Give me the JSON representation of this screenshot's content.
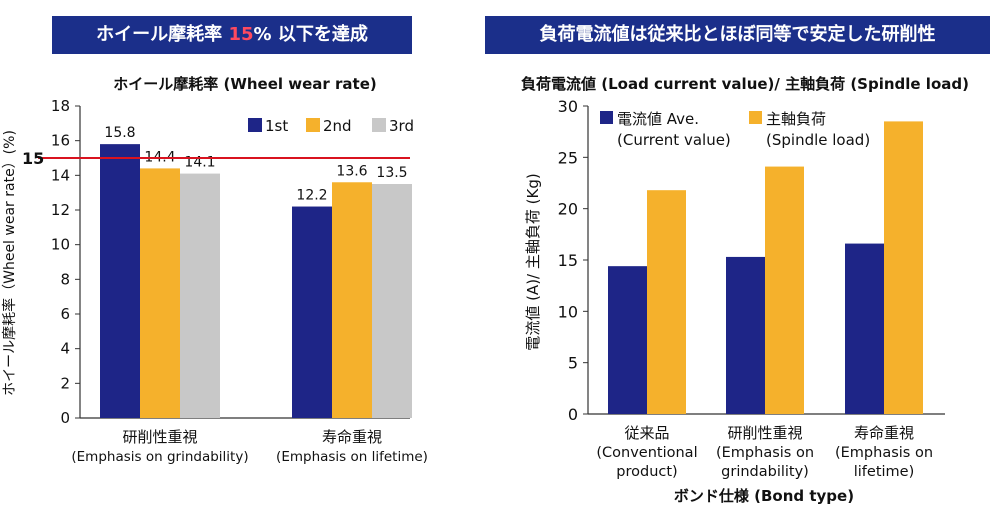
{
  "colors": {
    "banner": "#1b2f8a",
    "series1": "#1e2587",
    "series2": "#f5b12c",
    "series3": "#c8c8c8",
    "threshold": "#d9131f"
  },
  "banners": {
    "left": {
      "prefix": "ホイール摩耗率 ",
      "highlight": "15",
      "suffix": "% 以下を達成"
    },
    "right": {
      "text": "負荷電流値は従来比とほぼ同等で安定した研削性"
    }
  },
  "chart_data": [
    {
      "type": "bar",
      "title": "ホイール摩耗率 (Wheel wear rate)",
      "ylabel": "ホイール摩耗率（Wheel wear rate）(%)",
      "ylim": [
        0,
        18
      ],
      "yticks": [
        "0",
        "2",
        "4",
        "6",
        "8",
        "10",
        "12",
        "14",
        "16",
        "18"
      ],
      "categories": [
        [
          "研削性重視",
          "(Emphasis on grindability)"
        ],
        [
          "寿命重視",
          "(Emphasis on lifetime)"
        ]
      ],
      "series": [
        {
          "name": "1st",
          "values": [
            15.8,
            12.2
          ]
        },
        {
          "name": "2nd",
          "values": [
            14.4,
            13.6
          ]
        },
        {
          "name": "3rd",
          "values": [
            14.1,
            13.5
          ]
        }
      ],
      "data_labels": [
        [
          "15.8",
          "12.2"
        ],
        [
          "14.4",
          "13.6"
        ],
        [
          "14.1",
          "13.5"
        ]
      ],
      "threshold": {
        "value": 15,
        "label": "15"
      },
      "legend": "top-right",
      "grid": false
    },
    {
      "type": "bar",
      "title": "負荷電流値 (Load current value)/ 主軸負荷 (Spindle load)",
      "ylabel": "電流値 (A)/ 主軸負荷 (Kg)",
      "xlabel": "ボンド仕様 (Bond type)",
      "ylim": [
        0,
        30
      ],
      "yticks": [
        "0",
        "5",
        "10",
        "15",
        "20",
        "25",
        "30"
      ],
      "categories": [
        [
          "従来品",
          "(Conventional",
          "product)"
        ],
        [
          "研削性重視",
          "(Emphasis on",
          "grindability)"
        ],
        [
          "寿命重視",
          "(Emphasis on",
          "lifetime)"
        ]
      ],
      "series": [
        {
          "name": "電流値 Ave.",
          "name_sub": "(Current value)",
          "values": [
            14.4,
            15.3,
            16.6
          ]
        },
        {
          "name": "主軸負荷",
          "name_sub": "(Spindle load)",
          "values": [
            21.8,
            24.1,
            28.5
          ]
        }
      ],
      "legend": "top-left",
      "grid": false
    }
  ]
}
